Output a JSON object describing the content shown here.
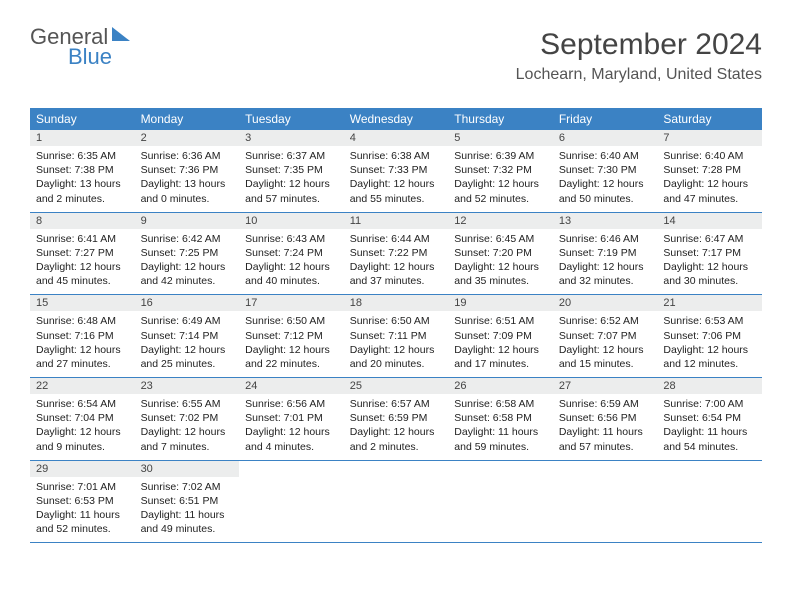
{
  "logo": {
    "part1": "General",
    "part2": "Blue"
  },
  "title": "September 2024",
  "location": "Lochearn, Maryland, United States",
  "colors": {
    "header_bg": "#3b82c4",
    "daynum_bg": "#eceded",
    "border": "#3b82c4",
    "text": "#222222",
    "title_color": "#444444"
  },
  "dayNames": [
    "Sunday",
    "Monday",
    "Tuesday",
    "Wednesday",
    "Thursday",
    "Friday",
    "Saturday"
  ],
  "weeks": [
    [
      {
        "n": "1",
        "sr": "Sunrise: 6:35 AM",
        "ss": "Sunset: 7:38 PM",
        "dl": "Daylight: 13 hours and 2 minutes."
      },
      {
        "n": "2",
        "sr": "Sunrise: 6:36 AM",
        "ss": "Sunset: 7:36 PM",
        "dl": "Daylight: 13 hours and 0 minutes."
      },
      {
        "n": "3",
        "sr": "Sunrise: 6:37 AM",
        "ss": "Sunset: 7:35 PM",
        "dl": "Daylight: 12 hours and 57 minutes."
      },
      {
        "n": "4",
        "sr": "Sunrise: 6:38 AM",
        "ss": "Sunset: 7:33 PM",
        "dl": "Daylight: 12 hours and 55 minutes."
      },
      {
        "n": "5",
        "sr": "Sunrise: 6:39 AM",
        "ss": "Sunset: 7:32 PM",
        "dl": "Daylight: 12 hours and 52 minutes."
      },
      {
        "n": "6",
        "sr": "Sunrise: 6:40 AM",
        "ss": "Sunset: 7:30 PM",
        "dl": "Daylight: 12 hours and 50 minutes."
      },
      {
        "n": "7",
        "sr": "Sunrise: 6:40 AM",
        "ss": "Sunset: 7:28 PM",
        "dl": "Daylight: 12 hours and 47 minutes."
      }
    ],
    [
      {
        "n": "8",
        "sr": "Sunrise: 6:41 AM",
        "ss": "Sunset: 7:27 PM",
        "dl": "Daylight: 12 hours and 45 minutes."
      },
      {
        "n": "9",
        "sr": "Sunrise: 6:42 AM",
        "ss": "Sunset: 7:25 PM",
        "dl": "Daylight: 12 hours and 42 minutes."
      },
      {
        "n": "10",
        "sr": "Sunrise: 6:43 AM",
        "ss": "Sunset: 7:24 PM",
        "dl": "Daylight: 12 hours and 40 minutes."
      },
      {
        "n": "11",
        "sr": "Sunrise: 6:44 AM",
        "ss": "Sunset: 7:22 PM",
        "dl": "Daylight: 12 hours and 37 minutes."
      },
      {
        "n": "12",
        "sr": "Sunrise: 6:45 AM",
        "ss": "Sunset: 7:20 PM",
        "dl": "Daylight: 12 hours and 35 minutes."
      },
      {
        "n": "13",
        "sr": "Sunrise: 6:46 AM",
        "ss": "Sunset: 7:19 PM",
        "dl": "Daylight: 12 hours and 32 minutes."
      },
      {
        "n": "14",
        "sr": "Sunrise: 6:47 AM",
        "ss": "Sunset: 7:17 PM",
        "dl": "Daylight: 12 hours and 30 minutes."
      }
    ],
    [
      {
        "n": "15",
        "sr": "Sunrise: 6:48 AM",
        "ss": "Sunset: 7:16 PM",
        "dl": "Daylight: 12 hours and 27 minutes."
      },
      {
        "n": "16",
        "sr": "Sunrise: 6:49 AM",
        "ss": "Sunset: 7:14 PM",
        "dl": "Daylight: 12 hours and 25 minutes."
      },
      {
        "n": "17",
        "sr": "Sunrise: 6:50 AM",
        "ss": "Sunset: 7:12 PM",
        "dl": "Daylight: 12 hours and 22 minutes."
      },
      {
        "n": "18",
        "sr": "Sunrise: 6:50 AM",
        "ss": "Sunset: 7:11 PM",
        "dl": "Daylight: 12 hours and 20 minutes."
      },
      {
        "n": "19",
        "sr": "Sunrise: 6:51 AM",
        "ss": "Sunset: 7:09 PM",
        "dl": "Daylight: 12 hours and 17 minutes."
      },
      {
        "n": "20",
        "sr": "Sunrise: 6:52 AM",
        "ss": "Sunset: 7:07 PM",
        "dl": "Daylight: 12 hours and 15 minutes."
      },
      {
        "n": "21",
        "sr": "Sunrise: 6:53 AM",
        "ss": "Sunset: 7:06 PM",
        "dl": "Daylight: 12 hours and 12 minutes."
      }
    ],
    [
      {
        "n": "22",
        "sr": "Sunrise: 6:54 AM",
        "ss": "Sunset: 7:04 PM",
        "dl": "Daylight: 12 hours and 9 minutes."
      },
      {
        "n": "23",
        "sr": "Sunrise: 6:55 AM",
        "ss": "Sunset: 7:02 PM",
        "dl": "Daylight: 12 hours and 7 minutes."
      },
      {
        "n": "24",
        "sr": "Sunrise: 6:56 AM",
        "ss": "Sunset: 7:01 PM",
        "dl": "Daylight: 12 hours and 4 minutes."
      },
      {
        "n": "25",
        "sr": "Sunrise: 6:57 AM",
        "ss": "Sunset: 6:59 PM",
        "dl": "Daylight: 12 hours and 2 minutes."
      },
      {
        "n": "26",
        "sr": "Sunrise: 6:58 AM",
        "ss": "Sunset: 6:58 PM",
        "dl": "Daylight: 11 hours and 59 minutes."
      },
      {
        "n": "27",
        "sr": "Sunrise: 6:59 AM",
        "ss": "Sunset: 6:56 PM",
        "dl": "Daylight: 11 hours and 57 minutes."
      },
      {
        "n": "28",
        "sr": "Sunrise: 7:00 AM",
        "ss": "Sunset: 6:54 PM",
        "dl": "Daylight: 11 hours and 54 minutes."
      }
    ],
    [
      {
        "n": "29",
        "sr": "Sunrise: 7:01 AM",
        "ss": "Sunset: 6:53 PM",
        "dl": "Daylight: 11 hours and 52 minutes."
      },
      {
        "n": "30",
        "sr": "Sunrise: 7:02 AM",
        "ss": "Sunset: 6:51 PM",
        "dl": "Daylight: 11 hours and 49 minutes."
      },
      null,
      null,
      null,
      null,
      null
    ]
  ]
}
